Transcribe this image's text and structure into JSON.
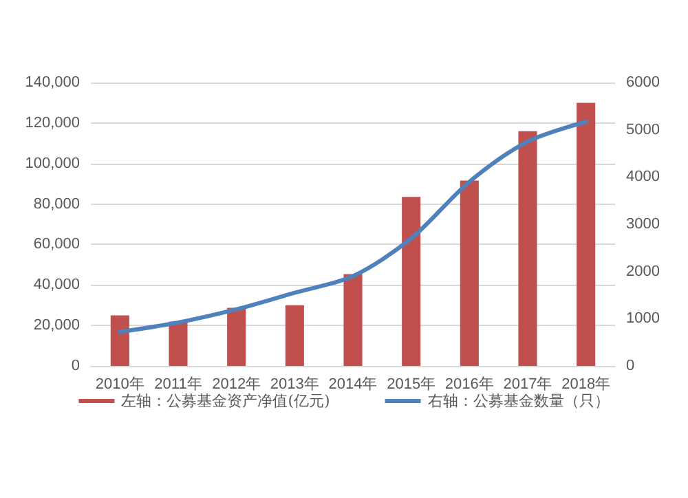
{
  "chart_data": {
    "type": "bar",
    "categories": [
      "2010年",
      "2011年",
      "2012年",
      "2013年",
      "2014年",
      "2015年",
      "2016年",
      "2017年",
      "2018年"
    ],
    "series": [
      {
        "name": "左轴：公募基金资产净值(亿元)",
        "color": "#c0504d",
        "values": [
          25000,
          21800,
          28700,
          30000,
          45400,
          83500,
          91600,
          116000,
          130000
        ]
      },
      {
        "name": "右轴：公募基金数量（只）",
        "color": "#4f81bd",
        "type": "line",
        "axis": "y2",
        "values": [
          720,
          920,
          1200,
          1550,
          1900,
          2700,
          3900,
          4750,
          5170
        ]
      }
    ],
    "ylim": [
      0,
      140000
    ],
    "yticks": [
      {
        "value": 0,
        "label": "0"
      },
      {
        "value": 20000,
        "label": "20,000"
      },
      {
        "value": 40000,
        "label": "40,000"
      },
      {
        "value": 60000,
        "label": "60,000"
      },
      {
        "value": 80000,
        "label": "80,000"
      },
      {
        "value": 100000,
        "label": "100,000"
      },
      {
        "value": 120000,
        "label": "120,000"
      },
      {
        "value": 140000,
        "label": "140,000"
      }
    ],
    "y2lim": [
      0,
      6000
    ],
    "y2ticks": [
      0,
      1000,
      2000,
      3000,
      4000,
      5000,
      6000
    ],
    "grid": "y",
    "legend": "bottom",
    "marker": "none",
    "line_style": "solid"
  }
}
